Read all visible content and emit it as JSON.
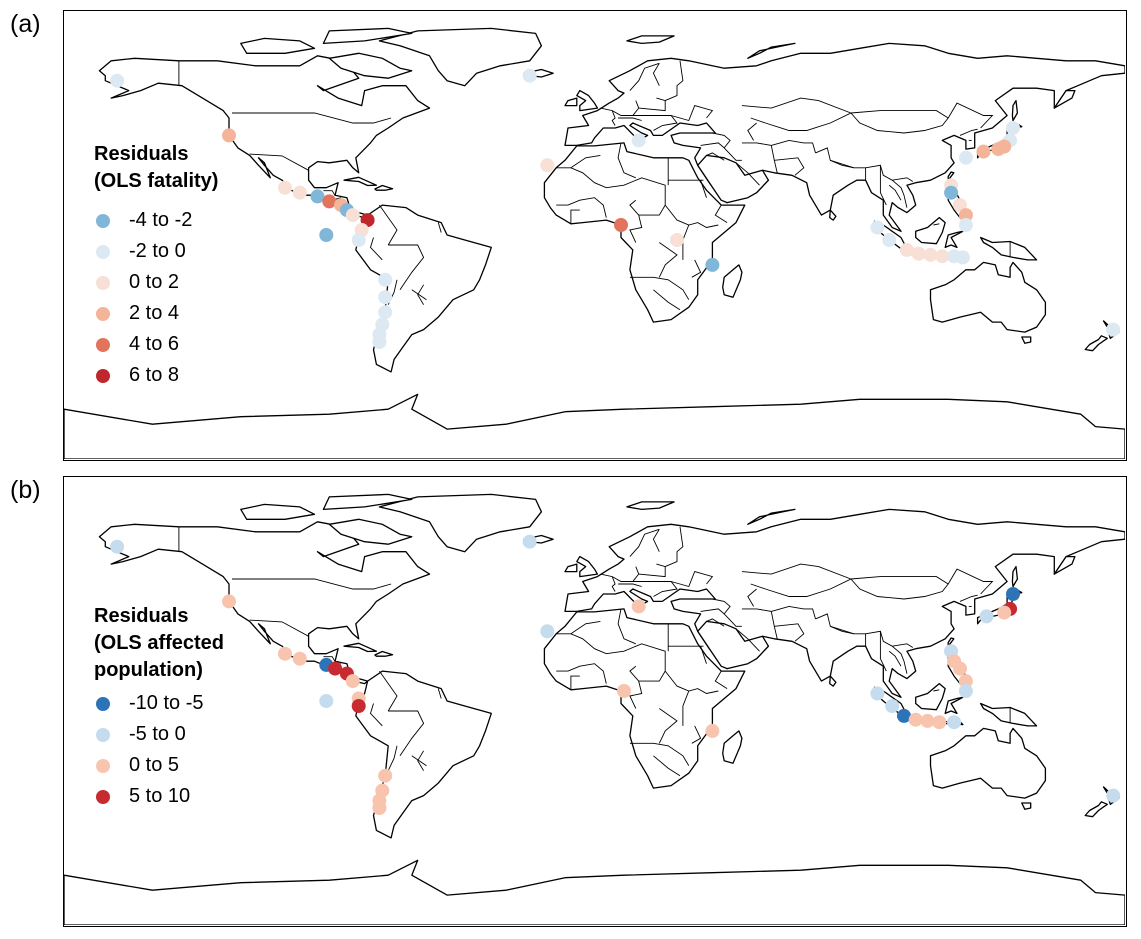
{
  "panels": [
    {
      "letter": "(a)",
      "legend": {
        "title_line1": "Residuals",
        "title_line2": "(OLS fatality)",
        "items": [
          {
            "label": "-4 to -2",
            "color": "#80b6d8"
          },
          {
            "label": "-2 to 0",
            "color": "#dce9f2"
          },
          {
            "label": "0 to 2",
            "color": "#f8e0d6"
          },
          {
            "label": "2 to 4",
            "color": "#f4b49a"
          },
          {
            "label": "4 to 6",
            "color": "#e2735d"
          },
          {
            "label": "6 to 8",
            "color": "#c0272d"
          }
        ]
      },
      "points": [
        {
          "lon": -162,
          "lat": 62,
          "class": 1
        },
        {
          "lon": -22,
          "lat": 64,
          "class": 1
        },
        {
          "lon": -124,
          "lat": 40,
          "class": 3
        },
        {
          "lon": -105,
          "lat": 19,
          "class": 2
        },
        {
          "lon": -100,
          "lat": 17,
          "class": 2
        },
        {
          "lon": -94,
          "lat": 15.5,
          "class": 0
        },
        {
          "lon": -90,
          "lat": 13.5,
          "class": 4
        },
        {
          "lon": -86,
          "lat": 12,
          "class": 3
        },
        {
          "lon": -84,
          "lat": 10,
          "class": 0
        },
        {
          "lon": -82,
          "lat": 8,
          "class": 2
        },
        {
          "lon": -91,
          "lat": 0,
          "class": 0
        },
        {
          "lon": -77,
          "lat": 6,
          "class": 5
        },
        {
          "lon": -79,
          "lat": 2,
          "class": 2
        },
        {
          "lon": -80,
          "lat": -2,
          "class": 1
        },
        {
          "lon": -71,
          "lat": -18,
          "class": 1
        },
        {
          "lon": -71,
          "lat": -25,
          "class": 1
        },
        {
          "lon": -71,
          "lat": -31,
          "class": 1
        },
        {
          "lon": -72,
          "lat": -36,
          "class": 1
        },
        {
          "lon": -73,
          "lat": -40,
          "class": 1
        },
        {
          "lon": -73,
          "lat": -43,
          "class": 1
        },
        {
          "lon": 15,
          "lat": 38,
          "class": 1
        },
        {
          "lon": -16,
          "lat": 28,
          "class": 2
        },
        {
          "lon": 9,
          "lat": 4,
          "class": 4
        },
        {
          "lon": 28,
          "lat": -2,
          "class": 2
        },
        {
          "lon": 40,
          "lat": -12,
          "class": 0
        },
        {
          "lon": 142,
          "lat": 43,
          "class": 1
        },
        {
          "lon": 141,
          "lat": 38,
          "class": 1
        },
        {
          "lon": 139,
          "lat": 35.5,
          "class": 3
        },
        {
          "lon": 137,
          "lat": 34.5,
          "class": 3
        },
        {
          "lon": 132,
          "lat": 33.5,
          "class": 3
        },
        {
          "lon": 126,
          "lat": 31,
          "class": 1
        },
        {
          "lon": 121,
          "lat": 20,
          "class": 2
        },
        {
          "lon": 121,
          "lat": 17,
          "class": 0
        },
        {
          "lon": 124,
          "lat": 12,
          "class": 2
        },
        {
          "lon": 126,
          "lat": 8,
          "class": 3
        },
        {
          "lon": 126,
          "lat": 4,
          "class": 1
        },
        {
          "lon": 96,
          "lat": 3,
          "class": 1
        },
        {
          "lon": 100,
          "lat": -2,
          "class": 1
        },
        {
          "lon": 106,
          "lat": -6,
          "class": 2
        },
        {
          "lon": 110,
          "lat": -7.5,
          "class": 2
        },
        {
          "lon": 114,
          "lat": -8,
          "class": 2
        },
        {
          "lon": 118,
          "lat": -8.5,
          "class": 2
        },
        {
          "lon": 122,
          "lat": -8.5,
          "class": 1
        },
        {
          "lon": 125,
          "lat": -9,
          "class": 1
        },
        {
          "lon": 176,
          "lat": -38,
          "class": 1
        }
      ]
    },
    {
      "letter": "(b)",
      "legend": {
        "title_line1": "Residuals",
        "title_line2": "(OLS affected",
        "title_line3": "population)",
        "items": [
          {
            "label": "-10 to -5",
            "color": "#2d73b8"
          },
          {
            "label": "-5 to 0",
            "color": "#c4dced"
          },
          {
            "label": "0 to 5",
            "color": "#f8c4ae"
          },
          {
            "label": "5 to 10",
            "color": "#c82a31"
          }
        ]
      },
      "points": [
        {
          "lon": -162,
          "lat": 62,
          "class": 1
        },
        {
          "lon": -22,
          "lat": 64,
          "class": 1
        },
        {
          "lon": -124,
          "lat": 40,
          "class": 2
        },
        {
          "lon": -105,
          "lat": 19,
          "class": 2
        },
        {
          "lon": -100,
          "lat": 17,
          "class": 2
        },
        {
          "lon": -91,
          "lat": 14.5,
          "class": 0
        },
        {
          "lon": -88,
          "lat": 13,
          "class": 3
        },
        {
          "lon": -84,
          "lat": 11,
          "class": 3
        },
        {
          "lon": -82,
          "lat": 8,
          "class": 2
        },
        {
          "lon": -91,
          "lat": 0,
          "class": 1
        },
        {
          "lon": -80,
          "lat": 1,
          "class": 2
        },
        {
          "lon": -80,
          "lat": -2,
          "class": 3
        },
        {
          "lon": -71,
          "lat": -30,
          "class": 2
        },
        {
          "lon": -72,
          "lat": -36,
          "class": 2
        },
        {
          "lon": -73,
          "lat": -40,
          "class": 2
        },
        {
          "lon": -73,
          "lat": -43,
          "class": 2
        },
        {
          "lon": 15,
          "lat": 38,
          "class": 2
        },
        {
          "lon": -16,
          "lat": 28,
          "class": 1
        },
        {
          "lon": 10,
          "lat": 4,
          "class": 2
        },
        {
          "lon": 40,
          "lat": -12,
          "class": 2
        },
        {
          "lon": 142,
          "lat": 43,
          "class": 0
        },
        {
          "lon": 141,
          "lat": 37,
          "class": 3
        },
        {
          "lon": 139,
          "lat": 35.5,
          "class": 2
        },
        {
          "lon": 133,
          "lat": 34,
          "class": 1
        },
        {
          "lon": 121,
          "lat": 20,
          "class": 1
        },
        {
          "lon": 122,
          "lat": 16,
          "class": 2
        },
        {
          "lon": 124,
          "lat": 13,
          "class": 2
        },
        {
          "lon": 126,
          "lat": 8,
          "class": 2
        },
        {
          "lon": 126,
          "lat": 4,
          "class": 1
        },
        {
          "lon": 96,
          "lat": 3,
          "class": 1
        },
        {
          "lon": 101,
          "lat": -2,
          "class": 1
        },
        {
          "lon": 105,
          "lat": -6,
          "class": 0
        },
        {
          "lon": 109,
          "lat": -7.5,
          "class": 2
        },
        {
          "lon": 113,
          "lat": -8,
          "class": 2
        },
        {
          "lon": 117,
          "lat": -8.5,
          "class": 2
        },
        {
          "lon": 122,
          "lat": -8.5,
          "class": 1
        },
        {
          "lon": 176,
          "lat": -38,
          "class": 1
        }
      ]
    }
  ]
}
